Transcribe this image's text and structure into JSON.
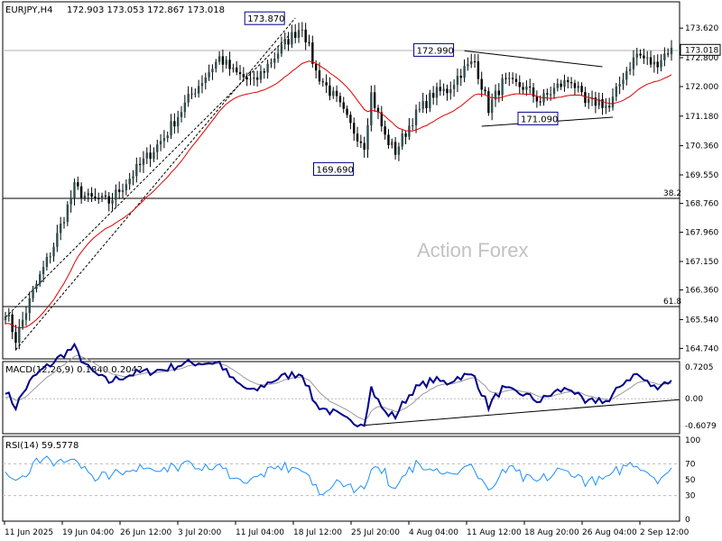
{
  "header": {
    "symbol": "EURJPY,H4",
    "ohlc": "172.903 173.053 172.867 173.018"
  },
  "watermark": "Action Forex",
  "chart_data": [
    {
      "type": "candlestick",
      "name": "price",
      "ylim": [
        164.5,
        174.3
      ],
      "price_ticks": [
        "173.620",
        "172.800",
        "172.000",
        "171.180",
        "170.360",
        "169.550",
        "168.760",
        "167.960",
        "167.150",
        "166.360",
        "165.540",
        "164.740"
      ],
      "last_price": "173.018",
      "x_tick_labels": [
        "11 Jun 2025",
        "19 Jun 04:00",
        "26 Jun 12:00",
        "3 Jul 20:00",
        "11 Jul 04:00",
        "18 Jul 12:00",
        "25 Jul 20:00",
        "4 Aug 04:00",
        "11 Aug 12:00",
        "18 Aug 20:00",
        "26 Aug 04:00",
        "2 Sep 12:00"
      ],
      "anchors": [
        [
          0,
          165.8
        ],
        [
          3,
          165.0
        ],
        [
          8,
          166.3
        ],
        [
          14,
          167.6
        ],
        [
          20,
          169.2
        ],
        [
          24,
          168.9
        ],
        [
          30,
          168.8
        ],
        [
          38,
          169.7
        ],
        [
          46,
          170.6
        ],
        [
          54,
          171.8
        ],
        [
          62,
          172.8
        ],
        [
          66,
          172.4
        ],
        [
          72,
          172.1
        ],
        [
          76,
          172.6
        ],
        [
          82,
          173.3
        ],
        [
          86,
          173.7
        ],
        [
          90,
          172.4
        ],
        [
          96,
          171.6
        ],
        [
          100,
          170.9
        ],
        [
          104,
          170.4
        ],
        [
          106,
          171.8
        ],
        [
          110,
          170.6
        ],
        [
          113,
          170.2
        ],
        [
          118,
          171.1
        ],
        [
          124,
          171.8
        ],
        [
          128,
          171.9
        ],
        [
          132,
          172.4
        ],
        [
          136,
          172.7
        ],
        [
          140,
          171.4
        ],
        [
          144,
          172.1
        ],
        [
          150,
          172.0
        ],
        [
          155,
          171.6
        ],
        [
          160,
          172.0
        ],
        [
          164,
          172.2
        ],
        [
          168,
          171.5
        ],
        [
          172,
          171.6
        ],
        [
          175,
          171.4
        ],
        [
          179,
          172.3
        ],
        [
          183,
          172.9
        ],
        [
          188,
          172.6
        ],
        [
          192,
          173.0
        ]
      ],
      "levels": [
        {
          "label": "38.2",
          "value": 168.9
        },
        {
          "label": "61.8",
          "value": 165.9
        },
        {
          "label": "",
          "value": 173.0
        }
      ],
      "annotations": [
        {
          "text": "173.870",
          "x": 84,
          "value": 173.87
        },
        {
          "text": "172.990",
          "x": 133,
          "value": 172.99
        },
        {
          "text": "169.690",
          "x": 105,
          "value": 169.69
        },
        {
          "text": "171.090",
          "x": 159,
          "value": 171.09
        }
      ]
    },
    {
      "type": "line",
      "name": "MACD",
      "title": "MACD(12,26,9) 0.1840 0.2042",
      "ylim": [
        -0.75,
        0.8
      ],
      "ticks": [
        {
          "label": "0.7205",
          "value": 0.7205
        },
        {
          "label": "0.00",
          "value": 0
        },
        {
          "label": "-0.6079",
          "value": -0.6079
        }
      ]
    },
    {
      "type": "line",
      "name": "RSI",
      "title": "RSI(14) 59.5778",
      "ylim": [
        0,
        100
      ],
      "ticks": [
        {
          "label": "100",
          "value": 100
        },
        {
          "label": "70",
          "value": 70
        },
        {
          "label": "50",
          "value": 50
        },
        {
          "label": "30",
          "value": 30
        },
        {
          "label": "0",
          "value": 0
        }
      ]
    }
  ]
}
